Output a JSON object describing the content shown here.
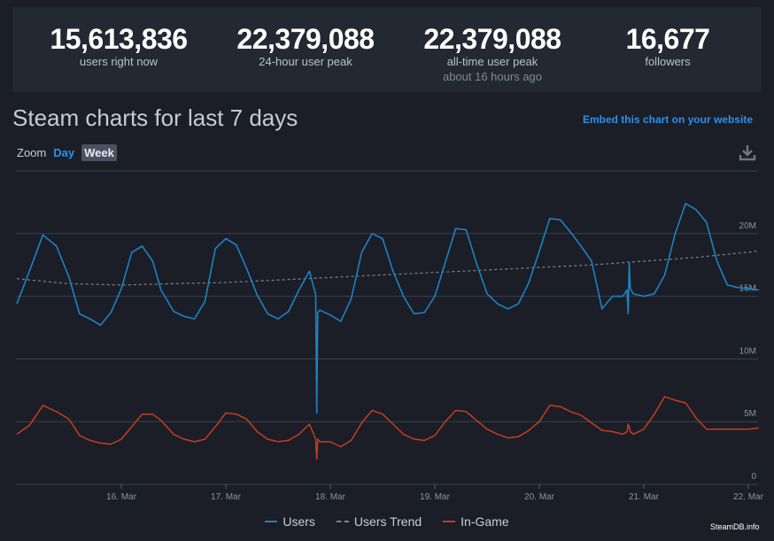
{
  "stats": [
    {
      "value": "15,613,836",
      "label": "users right now",
      "sub": ""
    },
    {
      "value": "22,379,088",
      "label": "24-hour user peak",
      "sub": ""
    },
    {
      "value": "22,379,088",
      "label": "all-time user peak",
      "sub": "about 16 hours ago"
    },
    {
      "value": "16,677",
      "label": "followers",
      "sub": ""
    }
  ],
  "title": "Steam charts for last 7 days",
  "embed_link": "Embed this chart on your website",
  "zoom": {
    "label": "Zoom",
    "day": "Day",
    "week": "Week"
  },
  "download_icon": "download-icon",
  "credit": "SteamDB.info",
  "colors": {
    "users": "#1c82c4",
    "trend": "#7b838c",
    "ingame": "#c63c22",
    "grid": "#3a404b",
    "background": "#1b1e26"
  },
  "chart_data": {
    "type": "line",
    "title": "Steam charts for last 7 days",
    "xlabel": "",
    "ylabel": "",
    "x_tick_labels": [
      "16. Mar",
      "17. Mar",
      "18. Mar",
      "19. Mar",
      "20. Mar",
      "21. Mar",
      "22. Mar"
    ],
    "y_tick_labels": [
      "0",
      "5M",
      "10M",
      "15M",
      "20M"
    ],
    "ylim": [
      0,
      25000000
    ],
    "grid": true,
    "legend": "bottom-center",
    "x_unit": "days since 15. Mar 00:00",
    "series": [
      {
        "name": "Users",
        "style": "solid",
        "x": [
          0,
          0.12,
          0.25,
          0.38,
          0.5,
          0.6,
          0.7,
          0.8,
          0.9,
          1.0,
          1.1,
          1.2,
          1.3,
          1.38,
          1.5,
          1.6,
          1.7,
          1.8,
          1.9,
          2.0,
          2.1,
          2.2,
          2.3,
          2.4,
          2.5,
          2.6,
          2.7,
          2.8,
          2.86,
          2.87,
          2.88,
          2.9,
          3.0,
          3.1,
          3.2,
          3.3,
          3.4,
          3.5,
          3.6,
          3.7,
          3.8,
          3.9,
          4.0,
          4.1,
          4.2,
          4.3,
          4.4,
          4.5,
          4.6,
          4.7,
          4.8,
          4.9,
          5.0,
          5.1,
          5.2,
          5.3,
          5.4,
          5.5,
          5.6,
          5.7,
          5.8,
          5.84,
          5.85,
          5.86,
          5.87,
          5.9,
          6.0,
          6.1,
          6.2,
          6.3,
          6.4,
          6.5,
          6.6,
          6.7,
          6.8,
          6.9,
          7.0,
          7.1
        ],
        "y": [
          14.4,
          17.0,
          19.9,
          19.0,
          16.5,
          13.6,
          13.2,
          12.7,
          13.7,
          15.6,
          18.5,
          19.0,
          17.8,
          15.5,
          13.8,
          13.4,
          13.2,
          14.6,
          18.8,
          19.6,
          19.1,
          17.2,
          15.1,
          13.6,
          13.2,
          13.8,
          15.5,
          17.0,
          15.1,
          5.7,
          13.7,
          13.9,
          13.5,
          13.0,
          14.8,
          18.5,
          20.0,
          19.6,
          17.0,
          15.0,
          13.6,
          13.7,
          15.0,
          17.7,
          20.4,
          20.3,
          17.6,
          15.2,
          14.4,
          14.0,
          14.4,
          16.1,
          18.6,
          21.2,
          21.1,
          20.1,
          19.0,
          17.8,
          14.0,
          15.0,
          15.0,
          15.5,
          13.6,
          17.7,
          15.6,
          15.2,
          15.0,
          15.2,
          16.7,
          20.0,
          22.4,
          21.9,
          20.9,
          17.8,
          15.9,
          15.7,
          15.6,
          15.5
        ]
      },
      {
        "name": "Users Trend",
        "style": "dashed",
        "x": [
          0,
          0.5,
          1.0,
          1.5,
          2.0,
          2.5,
          3.0,
          3.5,
          4.0,
          4.5,
          5.0,
          5.5,
          6.0,
          6.5,
          7.1
        ],
        "y": [
          16.4,
          16.0,
          15.9,
          16.0,
          16.1,
          16.3,
          16.5,
          16.7,
          16.9,
          17.1,
          17.3,
          17.5,
          17.8,
          18.1,
          18.6
        ]
      },
      {
        "name": "In-Game",
        "style": "solid",
        "x": [
          0,
          0.12,
          0.25,
          0.38,
          0.5,
          0.6,
          0.7,
          0.8,
          0.9,
          1.0,
          1.1,
          1.2,
          1.3,
          1.38,
          1.5,
          1.6,
          1.7,
          1.8,
          1.9,
          2.0,
          2.1,
          2.2,
          2.3,
          2.4,
          2.5,
          2.6,
          2.7,
          2.8,
          2.86,
          2.87,
          2.88,
          2.9,
          3.0,
          3.1,
          3.2,
          3.3,
          3.4,
          3.5,
          3.6,
          3.7,
          3.8,
          3.9,
          4.0,
          4.1,
          4.2,
          4.3,
          4.4,
          4.5,
          4.6,
          4.7,
          4.8,
          4.9,
          5.0,
          5.1,
          5.2,
          5.3,
          5.4,
          5.5,
          5.6,
          5.7,
          5.8,
          5.84,
          5.85,
          5.86,
          5.87,
          5.9,
          6.0,
          6.1,
          6.2,
          6.3,
          6.4,
          6.5,
          6.6,
          6.7,
          6.8,
          6.9,
          7.0,
          7.1
        ],
        "y": [
          4.0,
          4.7,
          6.3,
          5.8,
          5.2,
          3.9,
          3.5,
          3.3,
          3.2,
          3.6,
          4.6,
          5.6,
          5.6,
          5.1,
          4.0,
          3.6,
          3.4,
          3.6,
          4.6,
          5.7,
          5.6,
          5.2,
          4.2,
          3.6,
          3.4,
          3.5,
          4.0,
          4.8,
          3.6,
          2.0,
          3.6,
          3.4,
          3.4,
          3.0,
          3.5,
          4.9,
          5.9,
          5.6,
          4.8,
          4.0,
          3.6,
          3.5,
          3.9,
          5.0,
          5.9,
          5.8,
          5.1,
          4.4,
          4.0,
          3.7,
          3.8,
          4.3,
          5.0,
          6.3,
          6.2,
          5.8,
          5.5,
          4.9,
          4.3,
          4.2,
          4.0,
          4.2,
          4.8,
          4.6,
          4.2,
          4.0,
          4.4,
          5.6,
          7.0,
          6.7,
          6.5,
          5.3,
          4.4,
          4.4,
          4.4,
          4.4,
          4.4,
          4.5
        ]
      }
    ]
  }
}
